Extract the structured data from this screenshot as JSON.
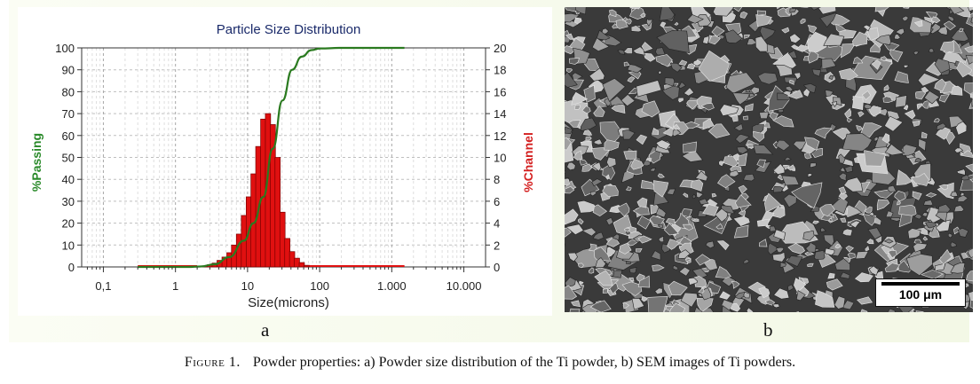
{
  "chart_data": {
    "type": "bar",
    "title": "Particle Size Distribution",
    "xlabel": "Size(microns)",
    "ylabel": "%Passing",
    "y2label": "%Channel",
    "xscale": "log",
    "xlim": [
      0.05,
      20000
    ],
    "ylim": [
      0,
      100
    ],
    "y2lim": [
      0,
      20
    ],
    "xticks": [
      {
        "value": 0.1,
        "label": "0,1"
      },
      {
        "value": 1,
        "label": "1"
      },
      {
        "value": 10,
        "label": "10"
      },
      {
        "value": 100,
        "label": "100"
      },
      {
        "value": 1000,
        "label": "1.000"
      },
      {
        "value": 10000,
        "label": "10.000"
      }
    ],
    "yticks": [
      0,
      10,
      20,
      30,
      40,
      50,
      60,
      70,
      80,
      90,
      100
    ],
    "y2ticks": [
      0,
      2,
      4,
      6,
      8,
      10,
      12,
      14,
      16,
      18,
      20
    ],
    "grid": true,
    "colors": {
      "channel": "#e01010",
      "passing": "#2a7a1f",
      "ylabel": "#2a8a2a",
      "y2label": "#d42020",
      "title": "#1a2a6a"
    },
    "series": [
      {
        "name": "%Channel",
        "axis": "right",
        "x": [
          2.2,
          2.6,
          3.0,
          3.5,
          4.1,
          4.8,
          5.6,
          6.5,
          7.6,
          8.9,
          10.4,
          12.1,
          14.1,
          16.5,
          19.2,
          22.4,
          26.1,
          30.5,
          35.6,
          41.5,
          48.4,
          56.5,
          65.9
        ],
        "values": [
          0.05,
          0.1,
          0.2,
          0.35,
          0.6,
          0.9,
          1.3,
          2.0,
          3.0,
          4.7,
          6.4,
          8.5,
          11.0,
          13.5,
          14.0,
          13.0,
          10.0,
          5.0,
          2.6,
          1.4,
          0.8,
          0.4,
          0.15
        ]
      },
      {
        "name": "%Passing",
        "axis": "left",
        "type": "line",
        "x": [
          0.3,
          1.5,
          2.2,
          3.5,
          5.6,
          8.9,
          12.1,
          16.5,
          22.4,
          30.5,
          41.5,
          56.5,
          76.9,
          100,
          200,
          1500
        ],
        "values": [
          0,
          0,
          0.2,
          1.2,
          4.5,
          12,
          20,
          32,
          54,
          76,
          90,
          96,
          99,
          99.7,
          100,
          100
        ]
      }
    ]
  },
  "sem": {
    "scale_label": "100 μm"
  },
  "panels": {
    "a": "a",
    "b": "b"
  },
  "caption": {
    "label": "Figure 1.",
    "text": "Powder properties: a) Powder size distribution of the Ti powder, b) SEM images of Ti powders."
  }
}
